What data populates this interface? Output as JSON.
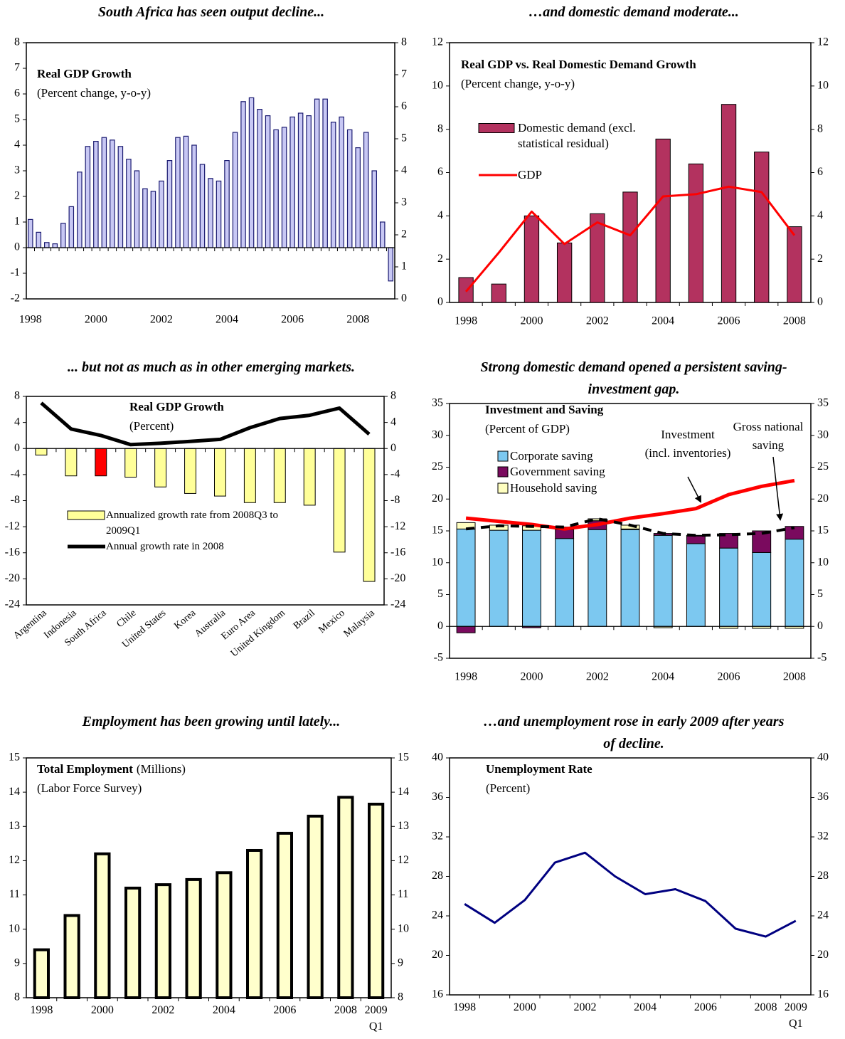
{
  "chart_data": [
    {
      "type": "bar",
      "heading": "South Africa has seen output decline...",
      "label": "Real GDP Growth",
      "sublabel": "(Percent change, y-o-y)",
      "categories": [
        "1998",
        null,
        null,
        null,
        null,
        null,
        null,
        null,
        "2000",
        null,
        null,
        null,
        null,
        null,
        null,
        null,
        "2002",
        null,
        null,
        null,
        null,
        null,
        null,
        null,
        "2004",
        null,
        null,
        null,
        null,
        null,
        null,
        null,
        "2006",
        null,
        null,
        null,
        null,
        null,
        null,
        null,
        "2008",
        null,
        null,
        null,
        null
      ],
      "series": [
        {
          "type": "bar",
          "color": "#c8c8f4",
          "edgecolor": "#1a1a70",
          "values": [
            1.1,
            0.6,
            0.2,
            0.15,
            0.95,
            1.6,
            2.95,
            3.95,
            4.15,
            4.3,
            4.2,
            3.95,
            3.45,
            3.0,
            2.3,
            2.2,
            2.6,
            3.4,
            4.3,
            4.35,
            4.0,
            3.25,
            2.7,
            2.6,
            3.4,
            4.5,
            5.7,
            5.85,
            5.4,
            5.15,
            4.6,
            4.7,
            5.1,
            5.25,
            5.15,
            5.8,
            5.8,
            4.9,
            5.1,
            4.6,
            3.9,
            4.5,
            3.0,
            1.0,
            -1.3
          ]
        }
      ],
      "ylim": [
        -2,
        8
      ],
      "yticks": [
        -2,
        -1,
        0,
        1,
        2,
        3,
        4,
        5,
        6,
        7,
        8
      ],
      "y2lim": [
        0,
        8
      ],
      "y2ticks": [
        0,
        1,
        2,
        3,
        4,
        5,
        6,
        7,
        8
      ]
    },
    {
      "type": "bar_line",
      "heading": "…and domestic demand moderate...",
      "label": "Real GDP  vs. Real Domestic Demand Growth",
      "sublabel": "(Percent change, y-o-y)",
      "categories": [
        "1998",
        null,
        "2000",
        null,
        "2002",
        null,
        "2004",
        null,
        "2006",
        null,
        "2008"
      ],
      "series": [
        {
          "type": "bar",
          "name": "Domestic demand (excl. statistical residual)",
          "color": "#b3325f",
          "edgecolor": "#000000",
          "values": [
            1.15,
            0.85,
            4.0,
            2.75,
            4.1,
            5.1,
            7.55,
            6.4,
            9.15,
            6.95,
            3.5
          ]
        },
        {
          "type": "line",
          "name": "GDP",
          "color": "#ff0000",
          "values": [
            0.5,
            2.3,
            4.2,
            2.7,
            3.7,
            3.1,
            4.9,
            5.0,
            5.35,
            5.1,
            3.1
          ]
        }
      ],
      "ylim": [
        0,
        12
      ],
      "yticks": [
        0,
        2,
        4,
        6,
        8,
        10,
        12
      ],
      "y2lim": [
        0,
        12
      ],
      "y2ticks": [
        0,
        2,
        4,
        6,
        8,
        10,
        12
      ]
    },
    {
      "type": "bar_line",
      "heading": "... but not as much as in other emerging markets.",
      "label": "Real GDP Growth",
      "sublabel": "(Percent)",
      "categories": [
        "Argentina",
        "Indonesia",
        "South Africa",
        "Chile",
        "United States",
        "Korea",
        "Australia",
        "Euro Area",
        "United Kingdom",
        "Brazil",
        "Mexico",
        "Malaysia"
      ],
      "series": [
        {
          "type": "bar",
          "name": "Annualized growth rate from 2008Q3 to 2009Q1",
          "color": "#ffff99",
          "edgecolor": "#000000",
          "colors": [
            "#ffff99",
            "#ffff99",
            "#ff0000",
            "#ffff99",
            "#ffff99",
            "#ffff99",
            "#ffff99",
            "#ffff99",
            "#ffff99",
            "#ffff99",
            "#ffff99",
            "#ffff99"
          ],
          "values": [
            -1.0,
            -4.2,
            -4.2,
            -4.4,
            -5.9,
            -6.9,
            -7.3,
            -8.3,
            -8.3,
            -8.7,
            -15.9,
            -20.4
          ]
        },
        {
          "type": "line",
          "name": "Annual growth rate in 2008",
          "color": "#000000",
          "values": [
            7.0,
            3.0,
            2.0,
            0.6,
            0.8,
            1.1,
            1.4,
            3.2,
            4.6,
            5.1,
            6.2,
            2.2
          ]
        }
      ],
      "ylim": [
        -24,
        8
      ],
      "yticks": [
        -24,
        -20,
        -16,
        -12,
        -8,
        -4,
        0,
        4,
        8
      ],
      "y2lim": [
        -24,
        8
      ],
      "y2ticks": [
        -24,
        -20,
        -16,
        -12,
        -8,
        -4,
        0,
        4,
        8
      ]
    },
    {
      "type": "stacked_bar_line",
      "heading": "Strong domestic demand opened a persistent saving-investment gap.",
      "label": "Investment and Saving",
      "sublabel": "(Percent of GDP)",
      "categories": [
        "1998",
        null,
        "2000",
        null,
        "2002",
        null,
        "2004",
        null,
        "2006",
        null,
        "2008"
      ],
      "series": [
        {
          "type": "bar",
          "name": "Corporate saving",
          "color": "#7cc8f0",
          "edgecolor": "#000000",
          "values": [
            15.3,
            15.1,
            15.1,
            13.8,
            15.2,
            15.2,
            14.3,
            13.0,
            12.3,
            11.6,
            13.7
          ]
        },
        {
          "type": "bar",
          "name": "Government saving",
          "color": "#7a0a5e",
          "edgecolor": "#000000",
          "values": [
            -1.0,
            0,
            -0.2,
            1.4,
            1.4,
            0.1,
            0.3,
            1.2,
            2.3,
            3.4,
            2.0
          ]
        },
        {
          "type": "bar",
          "name": "Household saving",
          "color": "#ffffc0",
          "edgecolor": "#000000",
          "values": [
            1.0,
            0.8,
            0.7,
            0.4,
            0.3,
            0.6,
            -0.2,
            0.1,
            -0.3,
            -0.3,
            -0.3
          ]
        },
        {
          "type": "line",
          "color": "#ff0000",
          "values": [
            17.0,
            16.5,
            16.0,
            15.3,
            16.0,
            17.0,
            17.7,
            18.5,
            20.7,
            22.0,
            22.9
          ]
        },
        {
          "type": "line",
          "color": "#000000",
          "linestyle": "dashed",
          "values": [
            15.3,
            15.8,
            15.7,
            15.6,
            16.9,
            15.9,
            14.6,
            14.3,
            14.4,
            14.6,
            15.5
          ]
        }
      ],
      "annotations": [
        {
          "lines": [
            "Investment",
            "(incl. inventories)"
          ]
        },
        {
          "lines": [
            "Gross national",
            "saving"
          ]
        }
      ],
      "ylim": [
        -5,
        35
      ],
      "yticks": [
        -5,
        0,
        5,
        10,
        15,
        20,
        25,
        30,
        35
      ],
      "y2lim": [
        -5,
        35
      ],
      "y2ticks": [
        -5,
        0,
        5,
        10,
        15,
        20,
        25,
        30,
        35
      ]
    },
    {
      "type": "bar",
      "heading": "Employment has been growing until lately...",
      "label": "Total Employment",
      "label_unit": "(Millions)",
      "sublabel": "(Labor Force Survey)",
      "categories": [
        "1998",
        null,
        "2000",
        null,
        "2002",
        null,
        "2004",
        null,
        "2006",
        null,
        "2008",
        "2009 Q1"
      ],
      "series": [
        {
          "type": "bar",
          "color": "#ffffcc",
          "edgecolor": "#000000",
          "values": [
            9.4,
            10.4,
            12.2,
            11.2,
            11.3,
            11.45,
            11.65,
            12.3,
            12.8,
            13.3,
            13.85,
            13.65
          ]
        }
      ],
      "ylim": [
        8,
        15
      ],
      "yticks": [
        8,
        9,
        10,
        11,
        12,
        13,
        14,
        15
      ],
      "y2lim": [
        8,
        15
      ],
      "y2ticks": [
        8,
        9,
        10,
        11,
        12,
        13,
        14,
        15
      ]
    },
    {
      "type": "line",
      "heading": "…and unemployment rose in early 2009 after years of decline.",
      "label": "Unemployment Rate",
      "sublabel": "(Percent)",
      "categories": [
        "1998",
        null,
        "2000",
        null,
        "2002",
        null,
        "2004",
        null,
        "2006",
        null,
        "2008",
        "2009 Q1"
      ],
      "series": [
        {
          "type": "line",
          "color": "#000080",
          "values": [
            25.2,
            23.3,
            25.6,
            29.4,
            30.4,
            28.0,
            26.2,
            26.7,
            25.5,
            22.7,
            21.9,
            23.5
          ]
        }
      ],
      "ylim": [
        16,
        40
      ],
      "yticks": [
        16,
        20,
        24,
        28,
        32,
        36,
        40
      ],
      "y2lim": [
        16,
        40
      ],
      "y2ticks": [
        16,
        20,
        24,
        28,
        32,
        36,
        40
      ]
    }
  ]
}
